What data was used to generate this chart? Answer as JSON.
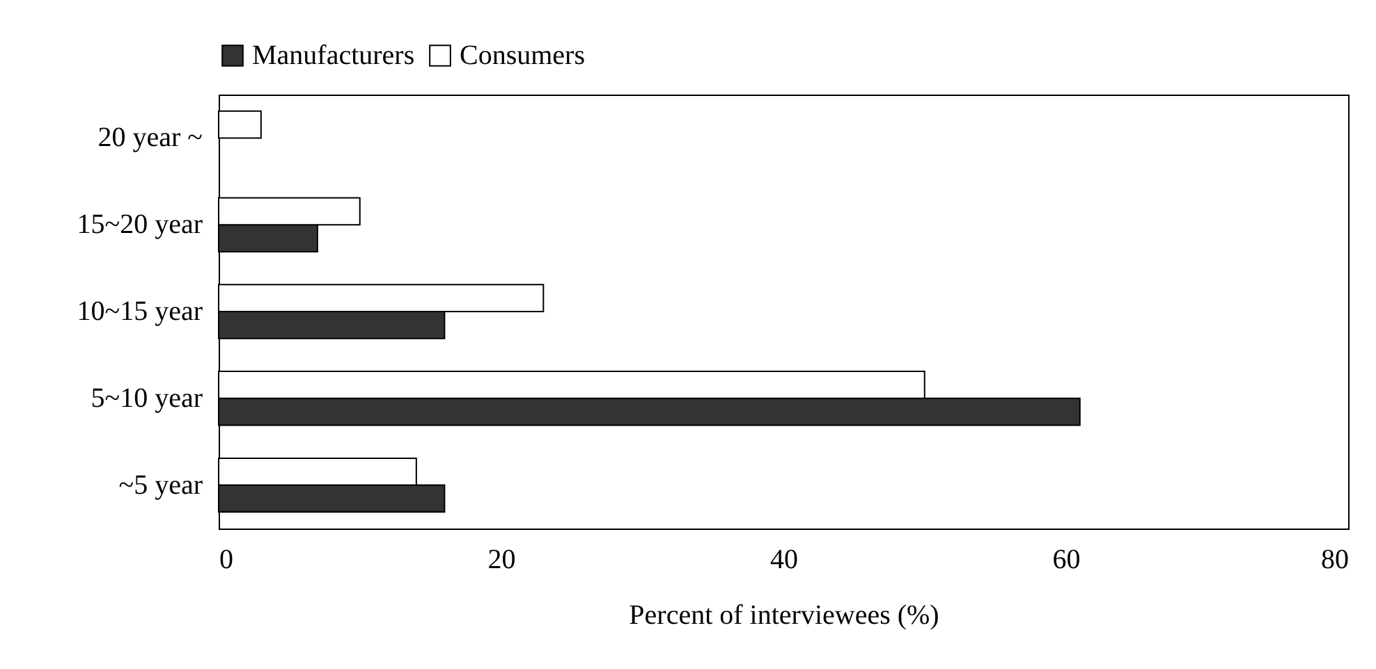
{
  "chart_data": {
    "type": "bar",
    "orientation": "horizontal",
    "xlabel": "Percent of interviewees (%)",
    "categories": [
      "20 year ~",
      "15~20 year",
      "10~15 year",
      "5~10 year",
      "~5 year"
    ],
    "series": [
      {
        "name": "Manufacturers",
        "color": "#333333",
        "values": [
          null,
          7,
          16,
          61,
          16
        ]
      },
      {
        "name": "Consumers",
        "color": "#ffffff",
        "values": [
          3,
          10,
          23,
          50,
          14
        ]
      }
    ],
    "xlim": [
      0,
      80
    ],
    "xticks": [
      0,
      20,
      40,
      60,
      80
    ],
    "grid": false,
    "legend": "top"
  }
}
